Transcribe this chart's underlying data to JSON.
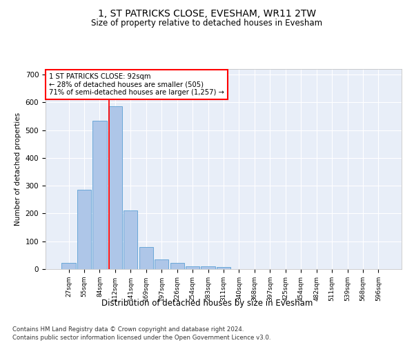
{
  "title": "1, ST PATRICKS CLOSE, EVESHAM, WR11 2TW",
  "subtitle": "Size of property relative to detached houses in Evesham",
  "xlabel": "Distribution of detached houses by size in Evesham",
  "ylabel": "Number of detached properties",
  "bar_labels": [
    "27sqm",
    "55sqm",
    "84sqm",
    "112sqm",
    "141sqm",
    "169sqm",
    "197sqm",
    "226sqm",
    "254sqm",
    "283sqm",
    "311sqm",
    "340sqm",
    "368sqm",
    "397sqm",
    "425sqm",
    "454sqm",
    "482sqm",
    "511sqm",
    "539sqm",
    "568sqm",
    "596sqm"
  ],
  "bar_values": [
    22,
    285,
    533,
    585,
    212,
    80,
    35,
    22,
    10,
    10,
    7,
    0,
    0,
    0,
    0,
    0,
    0,
    0,
    0,
    0,
    0
  ],
  "bar_color": "#aec6e8",
  "bar_edge_color": "#5a9fd4",
  "vline_x": 2.62,
  "vline_color": "red",
  "annotation_text": "1 ST PATRICKS CLOSE: 92sqm\n← 28% of detached houses are smaller (505)\n71% of semi-detached houses are larger (1,257) →",
  "annotation_box_color": "white",
  "annotation_box_edge_color": "red",
  "ylim": [
    0,
    720
  ],
  "yticks": [
    0,
    100,
    200,
    300,
    400,
    500,
    600,
    700
  ],
  "background_color": "#e8eef8",
  "footer_line1": "Contains HM Land Registry data © Crown copyright and database right 2024.",
  "footer_line2": "Contains public sector information licensed under the Open Government Licence v3.0."
}
